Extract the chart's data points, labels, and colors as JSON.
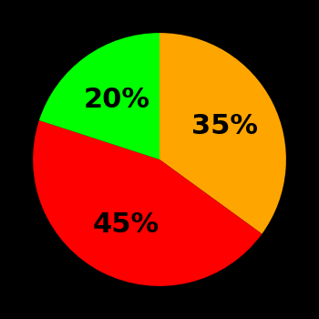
{
  "slices": [
    35,
    45,
    20
  ],
  "colors": [
    "#FFA500",
    "#FF0000",
    "#00FF00"
  ],
  "labels": [
    "35%",
    "45%",
    "20%"
  ],
  "startangle": 90,
  "background_color": "#000000",
  "text_color": "#000000",
  "font_size": 22,
  "font_weight": "bold",
  "label_r": 0.58
}
